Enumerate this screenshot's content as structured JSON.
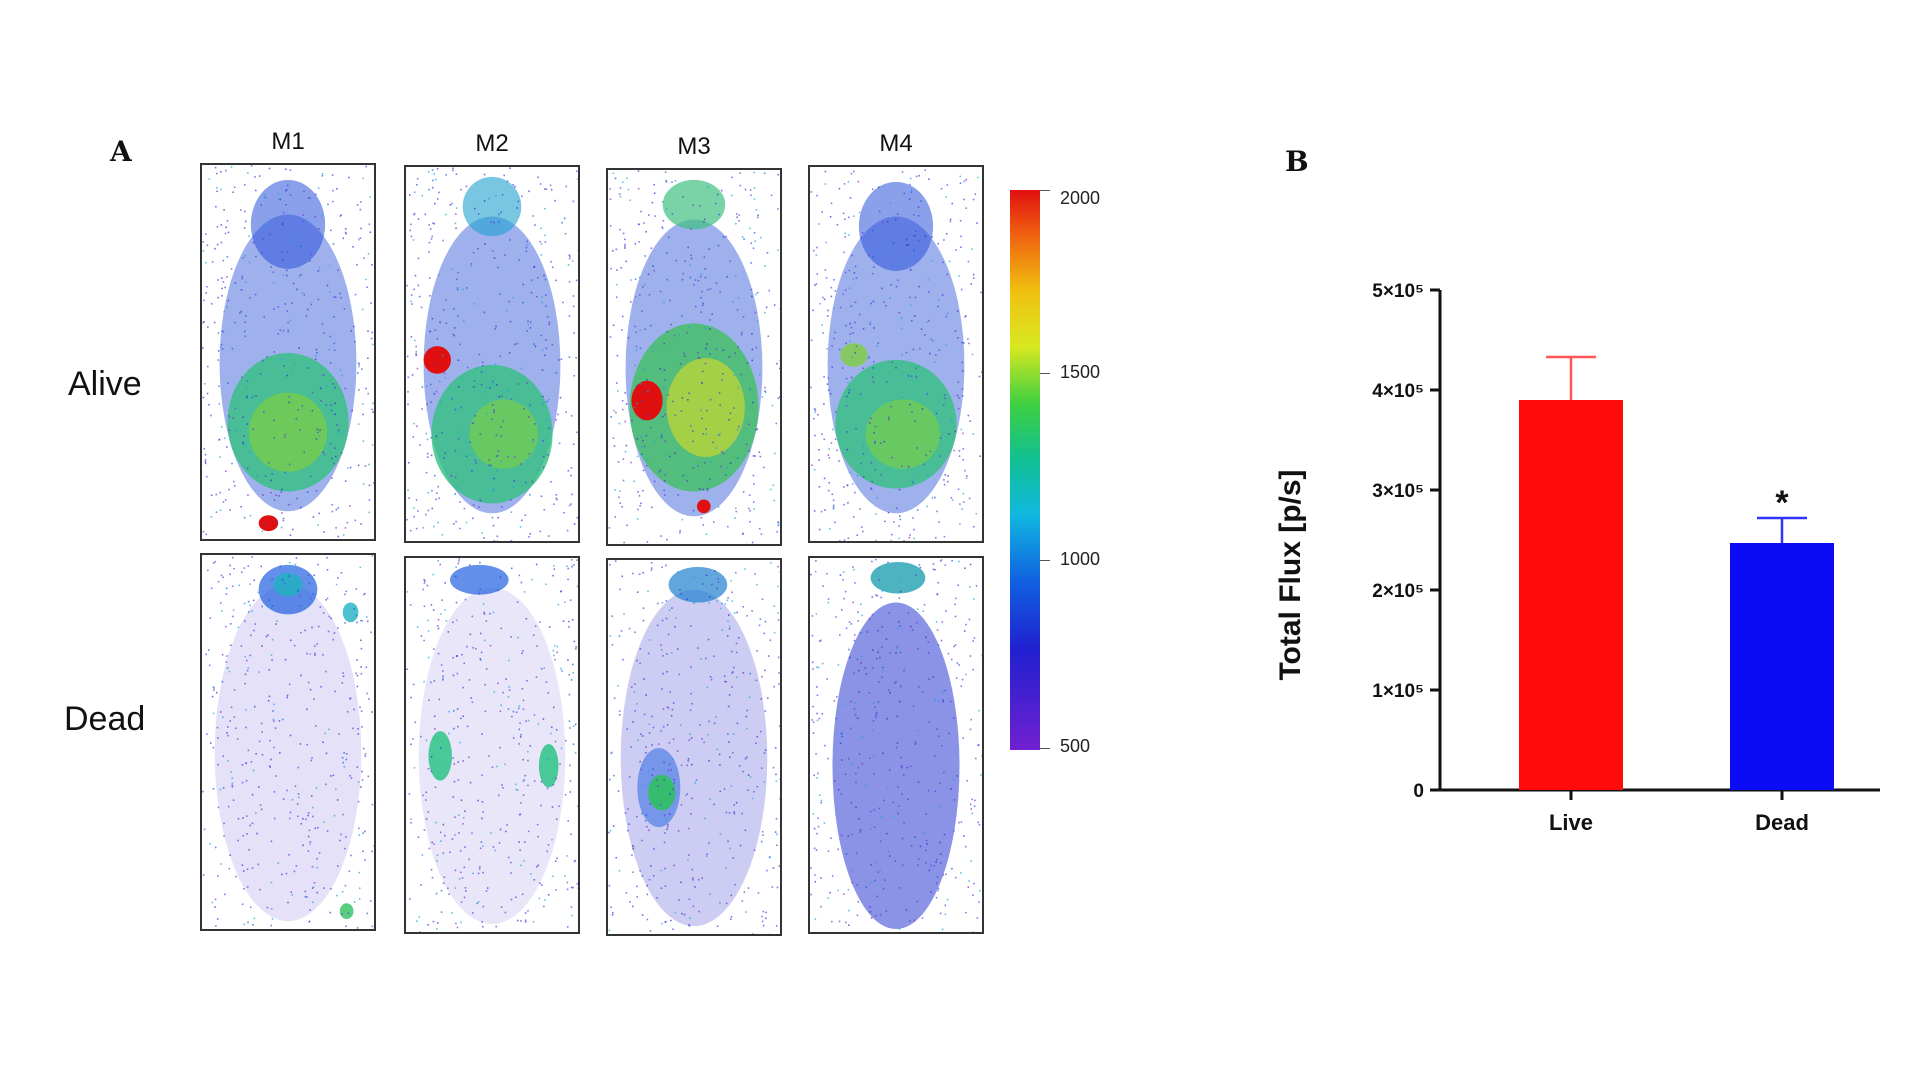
{
  "panel_a": {
    "letter": "A",
    "columns": [
      "M1",
      "M2",
      "M3",
      "M4"
    ],
    "rows": [
      "Alive",
      "Dead"
    ],
    "scale": {
      "labels": [
        "2000",
        "1500",
        "1000",
        "500"
      ]
    }
  },
  "panel_b": {
    "letter": "B"
  },
  "chart_data": {
    "type": "bar",
    "categories": [
      "Live",
      "Dead"
    ],
    "values": [
      390000,
      247000
    ],
    "errors": [
      43000,
      25000
    ],
    "colors": [
      "#ff0b0b",
      "#0b0bf5"
    ],
    "error_colors": [
      "#ff5555",
      "#3333ff"
    ],
    "ylabel": "Total Flux [p/s]",
    "ylim": [
      0,
      500000
    ],
    "yticks": [
      0,
      100000,
      200000,
      300000,
      400000,
      500000
    ],
    "ytick_labels": [
      "0",
      "1×10⁵",
      "2×10⁵",
      "3×10⁵",
      "4×10⁵",
      "5×10⁵"
    ],
    "annotations": [
      {
        "category": "Dead",
        "text": "*"
      }
    ]
  }
}
